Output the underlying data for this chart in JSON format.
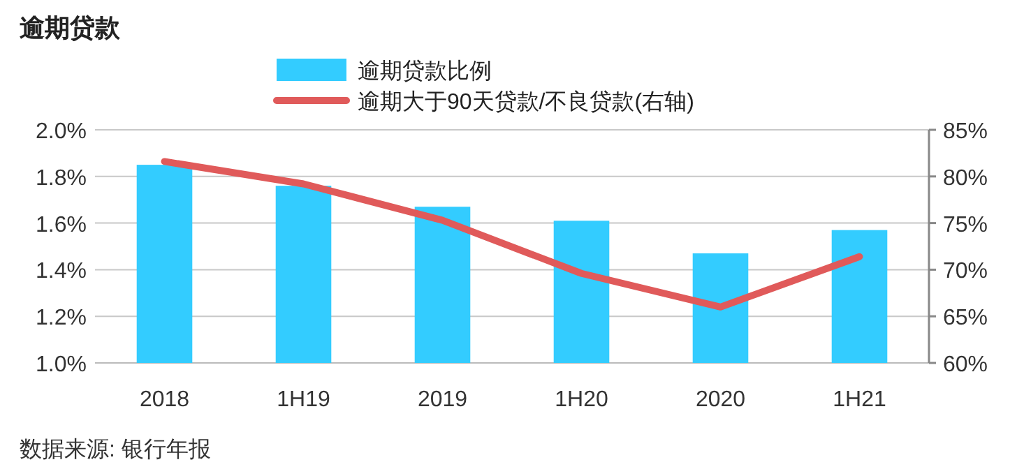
{
  "chart_data": {
    "type": "bar",
    "title": "逾期贷款",
    "categories": [
      "2018",
      "1H19",
      "2019",
      "1H20",
      "2020",
      "1H21"
    ],
    "series": [
      {
        "name": "逾期贷款比例",
        "color": "#33ccff",
        "values": [
          1.85,
          1.76,
          1.67,
          1.61,
          1.47,
          1.57
        ]
      },
      {
        "name": "逾期大于90天贷款/不良贷款(右轴)",
        "type": "line",
        "axis": "y2",
        "color": "#e05a5a",
        "values": [
          81.6,
          79.2,
          75.3,
          69.6,
          66.0,
          71.4
        ]
      }
    ],
    "ylim": [
      1.0,
      2.0
    ],
    "yticks": [
      {
        "value": 1.0,
        "label": "1.0%"
      },
      {
        "value": 1.2,
        "label": "1.2%"
      },
      {
        "value": 1.4,
        "label": "1.4%"
      },
      {
        "value": 1.6,
        "label": "1.6%"
      },
      {
        "value": 1.8,
        "label": "1.8%"
      },
      {
        "value": 2.0,
        "label": "2.0%"
      }
    ],
    "y2lim": [
      60,
      85
    ],
    "y2ticks": [
      {
        "value": 60,
        "label": "60%"
      },
      {
        "value": 65,
        "label": "65%"
      },
      {
        "value": 70,
        "label": "70%"
      },
      {
        "value": 75,
        "label": "75%"
      },
      {
        "value": 80,
        "label": "80%"
      },
      {
        "value": 85,
        "label": "85%"
      }
    ],
    "grid": "y",
    "legend": "top",
    "annotations": [
      "数据来源: 银行年报"
    ]
  }
}
